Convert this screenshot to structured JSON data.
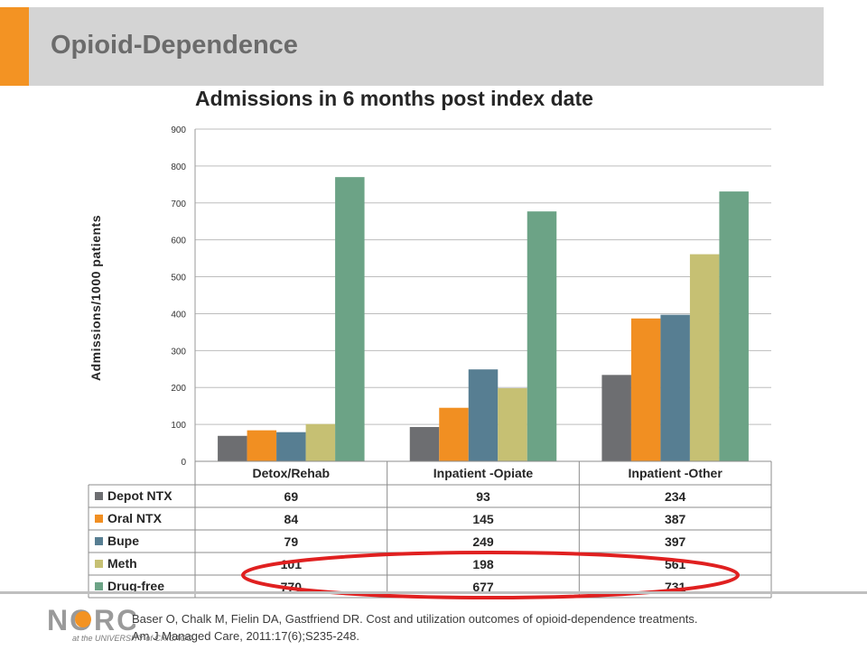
{
  "slide_title": "Opioid-Dependence",
  "logo": {
    "text": "NORC",
    "subtext": "at the UNIVERSITY of CHICAGO"
  },
  "citation": {
    "line1": "Baser O, Chalk M, Fielin DA, Gastfriend DR.  Cost and utilization outcomes of opioid-dependence treatments.",
    "line2": "Am J Managed Care, 2011:17(6);S235-248."
  },
  "colors": {
    "depot": "#6d6e71",
    "oral": "#f18f22",
    "bupe": "#577e92",
    "meth": "#c6c073",
    "drugfree": "#6ca386",
    "highlight": "#e02020"
  },
  "chart_data": {
    "type": "bar",
    "title": "Admissions in 6 months post index date",
    "ylabel": "Admissions/1000 patients",
    "xlabel": "",
    "ylim": [
      0,
      900
    ],
    "yticks": [
      "0",
      "100",
      "200",
      "300",
      "400",
      "500",
      "600",
      "700",
      "800",
      "900"
    ],
    "grid": true,
    "legend": "data-table",
    "categories": [
      "Detox/Rehab",
      "Inpatient -Opiate",
      "Inpatient -Other"
    ],
    "series": [
      {
        "name": "Depot NTX",
        "color": "#6d6e71",
        "values": [
          69,
          93,
          234
        ]
      },
      {
        "name": "Oral NTX",
        "color": "#f18f22",
        "values": [
          84,
          145,
          387
        ]
      },
      {
        "name": "Bupe",
        "color": "#577e92",
        "values": [
          79,
          249,
          397
        ]
      },
      {
        "name": "Meth",
        "color": "#c6c073",
        "values": [
          101,
          198,
          561
        ]
      },
      {
        "name": "Drug-free",
        "color": "#6ca386",
        "values": [
          770,
          677,
          731
        ]
      }
    ]
  }
}
